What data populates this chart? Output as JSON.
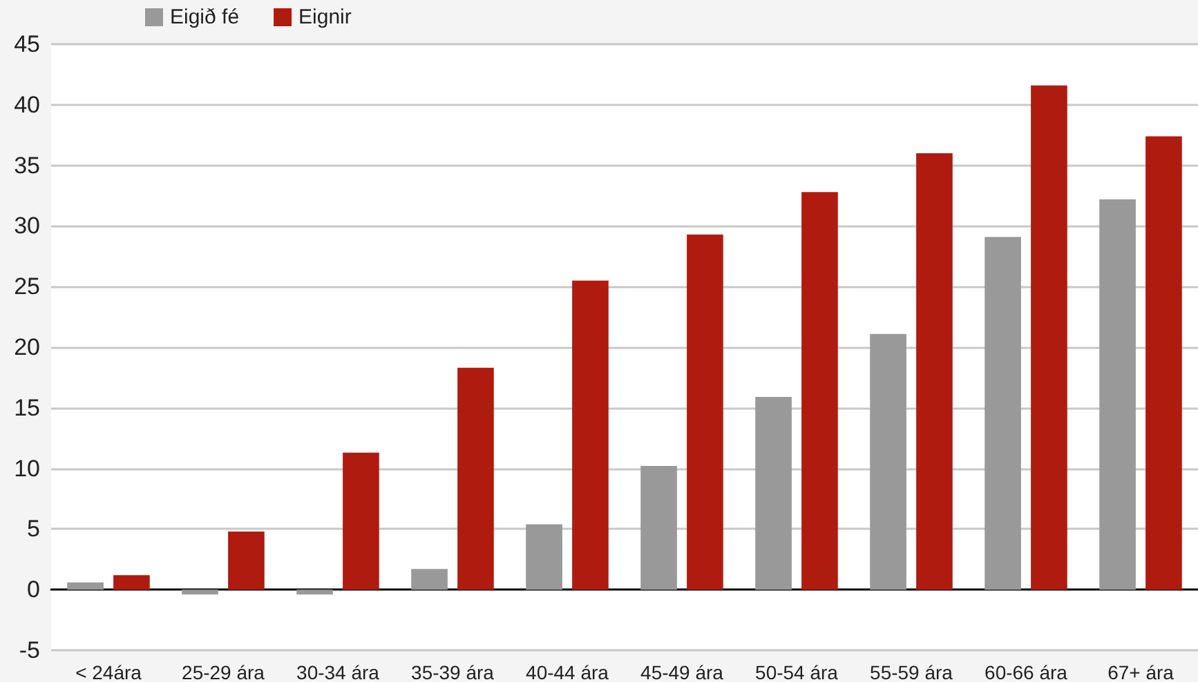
{
  "chart_data": {
    "type": "bar",
    "categories": [
      "< 24ára",
      "25-29 ára",
      "30-34 ára",
      "35-39 ára",
      "40-44 ára",
      "45-49 ára",
      "50-54 ára",
      "55-59 ára",
      "60-66 ára",
      "67+ ára"
    ],
    "series": [
      {
        "name": "Eigið fé",
        "color": "#999999",
        "values": [
          0.6,
          -0.4,
          -0.4,
          1.7,
          5.4,
          10.2,
          15.9,
          21.1,
          29.1,
          32.2
        ]
      },
      {
        "name": "Eignir",
        "color": "#b01b10",
        "values": [
          1.2,
          4.8,
          11.3,
          18.3,
          25.5,
          29.3,
          32.8,
          36.0,
          41.6,
          37.4
        ]
      }
    ],
    "ylim": [
      -5,
      45
    ],
    "yticks": [
      -5,
      0,
      5,
      10,
      15,
      20,
      25,
      30,
      35,
      40,
      45
    ],
    "grid": "y",
    "legend": "top left"
  }
}
